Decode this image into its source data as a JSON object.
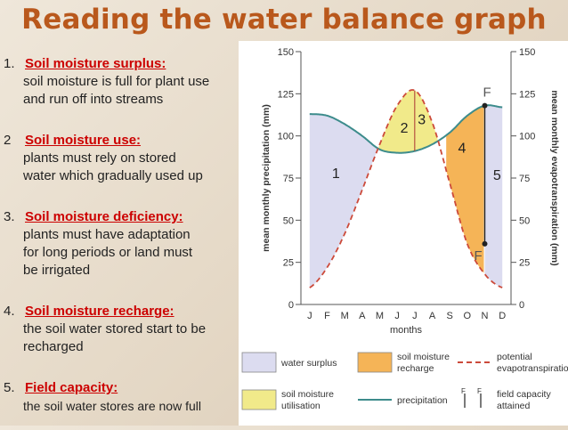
{
  "title": "Reading the water balance graph",
  "notes": [
    {
      "num": "1.",
      "heading": "Soil moisture surplus:",
      "body": "soil moisture is full for plant use\nand run off into streams"
    },
    {
      "num": "2",
      "heading": "Soil moisture use:",
      "body": "plants must rely on stored\nwater which gradually used up"
    },
    {
      "num": "3.",
      "heading": "Soil moisture deficiency:",
      "body": " plants must have adaptation\nfor long periods or land must\nbe irrigated"
    },
    {
      "num": "4.",
      "heading": "Soil moisture recharge:",
      "body": "the soil water stored start to be\nrecharged"
    },
    {
      "num": "5.",
      "heading": "Field capacity:",
      "body": "the soil water stores are now full"
    }
  ],
  "chart_data": {
    "type": "line",
    "x_label": "months",
    "categories": [
      "J",
      "F",
      "M",
      "A",
      "M",
      "J",
      "J",
      "A",
      "S",
      "O",
      "N",
      "D"
    ],
    "y_left_label": "mean monthly precipitation (mm)",
    "y_right_label": "mean monthly evapotranspiration (mm)",
    "ylim": [
      0,
      150
    ],
    "y_ticks": [
      0,
      25,
      50,
      75,
      100,
      125,
      150
    ],
    "series": [
      {
        "name": "precipitation",
        "color": "#3d8c8c",
        "style": "solid",
        "values": [
          113,
          112,
          107,
          100,
          92,
          90,
          91,
          95,
          102,
          112,
          118,
          117
        ]
      },
      {
        "name": "potential evapotranspiration",
        "color": "#cc4a3a",
        "style": "dashed",
        "values": [
          10,
          22,
          42,
          68,
          95,
          118,
          127,
          108,
          72,
          36,
          18,
          10
        ]
      }
    ],
    "regions": [
      {
        "label": "1",
        "name": "water surplus",
        "color": "#dcdcf0"
      },
      {
        "label": "2",
        "name": "soil moisture utilisation",
        "color": "#f1ea8a"
      },
      {
        "label": "3",
        "name": "soil moisture utilisation",
        "color": "#f1ea8a"
      },
      {
        "label": "4",
        "name": "soil moisture recharge",
        "color": "#f5b457"
      },
      {
        "label": "5",
        "name": "water surplus",
        "color": "#dcdcf0"
      }
    ],
    "field_capacity_label": "F",
    "legend": [
      {
        "label": "water surplus",
        "swatch": "#dcdcf0",
        "kind": "box"
      },
      {
        "label": "soil moisture\nrecharge",
        "swatch": "#f5b457",
        "kind": "box"
      },
      {
        "label": "potential\nevapotranspiration",
        "swatch": "#cc4a3a",
        "kind": "dash"
      },
      {
        "label": "soil moisture\nutilisation",
        "swatch": "#f1ea8a",
        "kind": "box"
      },
      {
        "label": "precipitation",
        "swatch": "#3d8c8c",
        "kind": "line"
      },
      {
        "label": "field capacity\nattained",
        "swatch": "#222222",
        "kind": "fc"
      }
    ]
  }
}
